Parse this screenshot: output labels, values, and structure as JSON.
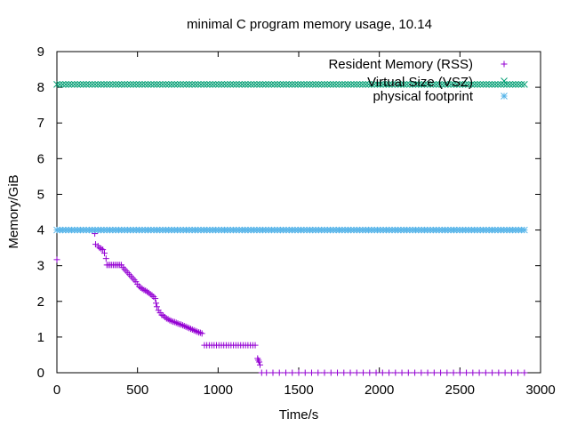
{
  "chart_data": {
    "type": "scatter",
    "title": "minimal C program memory usage, 10.14",
    "xlabel": "Time/s",
    "ylabel": "Memory/GiB",
    "xlim": [
      0,
      3000
    ],
    "ylim": [
      0,
      9
    ],
    "xticks": [
      "0",
      "500",
      "1000",
      "1500",
      "2000",
      "2500",
      "3000"
    ],
    "yticks": [
      "0",
      "1",
      "2",
      "3",
      "4",
      "5",
      "6",
      "7",
      "8",
      "9"
    ],
    "grid": false,
    "legend_position": "top-right",
    "series": [
      {
        "name": "Resident Memory (RSS)",
        "marker": "+",
        "color": "#9400d3",
        "points": [
          [
            0,
            3.17
          ],
          [
            235,
            3.9
          ],
          [
            240,
            3.6
          ],
          [
            255,
            3.55
          ],
          [
            265,
            3.5
          ],
          [
            275,
            3.47
          ],
          [
            285,
            3.45
          ],
          [
            295,
            3.35
          ],
          [
            305,
            3.2
          ],
          [
            310,
            3.02
          ],
          [
            320,
            3.02
          ],
          [
            330,
            3.02
          ],
          [
            340,
            3.02
          ],
          [
            350,
            3.02
          ],
          [
            360,
            3.02
          ],
          [
            370,
            3.02
          ],
          [
            380,
            3.02
          ],
          [
            390,
            3.02
          ],
          [
            400,
            3.02
          ],
          [
            410,
            2.95
          ],
          [
            420,
            2.9
          ],
          [
            430,
            2.85
          ],
          [
            440,
            2.8
          ],
          [
            450,
            2.75
          ],
          [
            460,
            2.7
          ],
          [
            470,
            2.65
          ],
          [
            480,
            2.6
          ],
          [
            490,
            2.55
          ],
          [
            500,
            2.48
          ],
          [
            510,
            2.42
          ],
          [
            520,
            2.38
          ],
          [
            530,
            2.35
          ],
          [
            540,
            2.32
          ],
          [
            550,
            2.3
          ],
          [
            560,
            2.27
          ],
          [
            570,
            2.24
          ],
          [
            580,
            2.2
          ],
          [
            590,
            2.17
          ],
          [
            600,
            2.13
          ],
          [
            610,
            2.08
          ],
          [
            615,
            1.95
          ],
          [
            620,
            1.85
          ],
          [
            630,
            1.75
          ],
          [
            640,
            1.68
          ],
          [
            650,
            1.62
          ],
          [
            660,
            1.6
          ],
          [
            670,
            1.56
          ],
          [
            680,
            1.52
          ],
          [
            690,
            1.5
          ],
          [
            700,
            1.47
          ],
          [
            710,
            1.45
          ],
          [
            720,
            1.43
          ],
          [
            730,
            1.42
          ],
          [
            740,
            1.4
          ],
          [
            750,
            1.38
          ],
          [
            760,
            1.36
          ],
          [
            770,
            1.35
          ],
          [
            780,
            1.33
          ],
          [
            790,
            1.31
          ],
          [
            800,
            1.29
          ],
          [
            810,
            1.27
          ],
          [
            820,
            1.25
          ],
          [
            830,
            1.23
          ],
          [
            840,
            1.21
          ],
          [
            850,
            1.19
          ],
          [
            860,
            1.17
          ],
          [
            870,
            1.15
          ],
          [
            880,
            1.13
          ],
          [
            890,
            1.12
          ],
          [
            900,
            1.1
          ],
          [
            915,
            0.77
          ],
          [
            930,
            0.77
          ],
          [
            945,
            0.77
          ],
          [
            960,
            0.77
          ],
          [
            975,
            0.77
          ],
          [
            990,
            0.77
          ],
          [
            1005,
            0.77
          ],
          [
            1020,
            0.77
          ],
          [
            1035,
            0.77
          ],
          [
            1050,
            0.77
          ],
          [
            1065,
            0.77
          ],
          [
            1080,
            0.77
          ],
          [
            1095,
            0.77
          ],
          [
            1110,
            0.77
          ],
          [
            1125,
            0.77
          ],
          [
            1140,
            0.77
          ],
          [
            1155,
            0.77
          ],
          [
            1170,
            0.77
          ],
          [
            1185,
            0.77
          ],
          [
            1200,
            0.77
          ],
          [
            1215,
            0.77
          ],
          [
            1230,
            0.77
          ],
          [
            1245,
            0.4
          ],
          [
            1250,
            0.35
          ],
          [
            1255,
            0.3
          ],
          [
            1260,
            0.22
          ],
          [
            1270,
            0.0
          ],
          [
            1300,
            0.0
          ],
          [
            1340,
            0.0
          ],
          [
            1380,
            0.0
          ],
          [
            1420,
            0.0
          ],
          [
            1460,
            0.0
          ],
          [
            1500,
            0.0
          ],
          [
            1540,
            0.0
          ],
          [
            1580,
            0.0
          ],
          [
            1620,
            0.0
          ],
          [
            1660,
            0.0
          ],
          [
            1700,
            0.0
          ],
          [
            1740,
            0.0
          ],
          [
            1780,
            0.0
          ],
          [
            1820,
            0.0
          ],
          [
            1860,
            0.0
          ],
          [
            1900,
            0.0
          ],
          [
            1940,
            0.0
          ],
          [
            1980,
            0.0
          ],
          [
            2020,
            0.0
          ],
          [
            2060,
            0.0
          ],
          [
            2100,
            0.0
          ],
          [
            2140,
            0.0
          ],
          [
            2180,
            0.0
          ],
          [
            2220,
            0.0
          ],
          [
            2260,
            0.0
          ],
          [
            2300,
            0.0
          ],
          [
            2340,
            0.0
          ],
          [
            2380,
            0.0
          ],
          [
            2420,
            0.0
          ],
          [
            2460,
            0.0
          ],
          [
            2500,
            0.0
          ],
          [
            2540,
            0.0
          ],
          [
            2580,
            0.0
          ],
          [
            2620,
            0.0
          ],
          [
            2660,
            0.0
          ],
          [
            2700,
            0.0
          ],
          [
            2740,
            0.0
          ],
          [
            2780,
            0.0
          ],
          [
            2820,
            0.0
          ],
          [
            2860,
            0.0
          ],
          [
            2900,
            0.0
          ]
        ]
      },
      {
        "name": "Virtual Size (VSZ)",
        "marker": "x",
        "color": "#009e73",
        "constant": {
          "y": 8.08,
          "x_start": 0,
          "x_end": 2900,
          "approx_count": 160
        }
      },
      {
        "name": "physical footprint",
        "marker": "*",
        "color": "#56b4e9",
        "constant": {
          "y": 4.0,
          "x_start": 0,
          "x_end": 2900,
          "approx_count": 160
        }
      }
    ]
  }
}
